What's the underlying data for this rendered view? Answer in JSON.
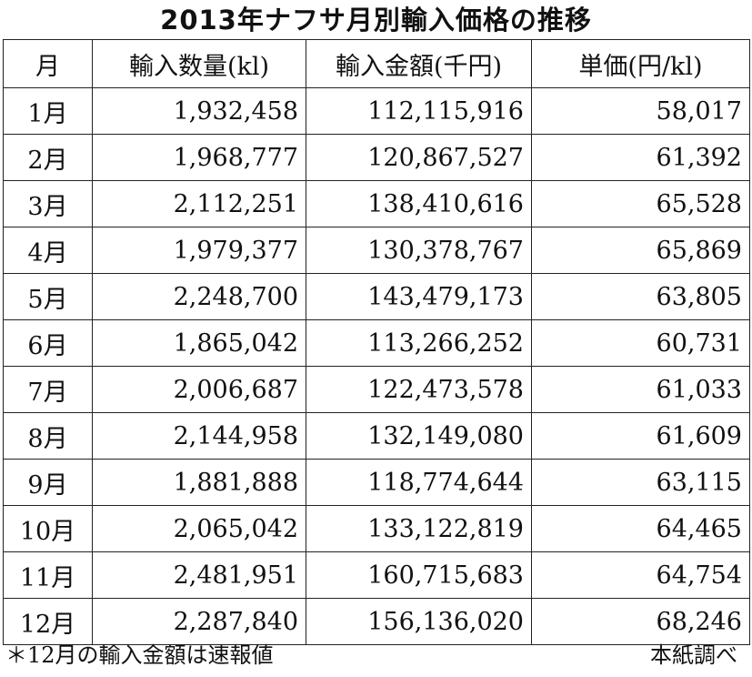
{
  "title": "2013年ナフサ月別輸入価格の推移",
  "table": {
    "headers": [
      "月",
      "輸入数量(kl)",
      "輸入金額(千円)",
      "単価(円/kl)"
    ],
    "rows": [
      [
        "1月",
        "1,932,458",
        "112,115,916",
        "58,017"
      ],
      [
        "2月",
        "1,968,777",
        "120,867,527",
        "61,392"
      ],
      [
        "3月",
        "2,112,251",
        "138,410,616",
        "65,528"
      ],
      [
        "4月",
        "1,979,377",
        "130,378,767",
        "65,869"
      ],
      [
        "5月",
        "2,248,700",
        "143,479,173",
        "63,805"
      ],
      [
        "6月",
        "1,865,042",
        "113,266,252",
        "60,731"
      ],
      [
        "7月",
        "2,006,687",
        "122,473,578",
        "61,033"
      ],
      [
        "8月",
        "2,144,958",
        "132,149,080",
        "61,609"
      ],
      [
        "9月",
        "1,881,888",
        "118,774,644",
        "63,115"
      ],
      [
        "10月",
        "2,065,042",
        "133,122,819",
        "64,465"
      ],
      [
        "11月",
        "2,481,951",
        "160,715,683",
        "64,754"
      ],
      [
        "12月",
        "2,287,840",
        "156,136,020",
        "68,246"
      ]
    ]
  },
  "footnote": "＊12月の輸入金額は速報値",
  "source": "本紙調べ"
}
